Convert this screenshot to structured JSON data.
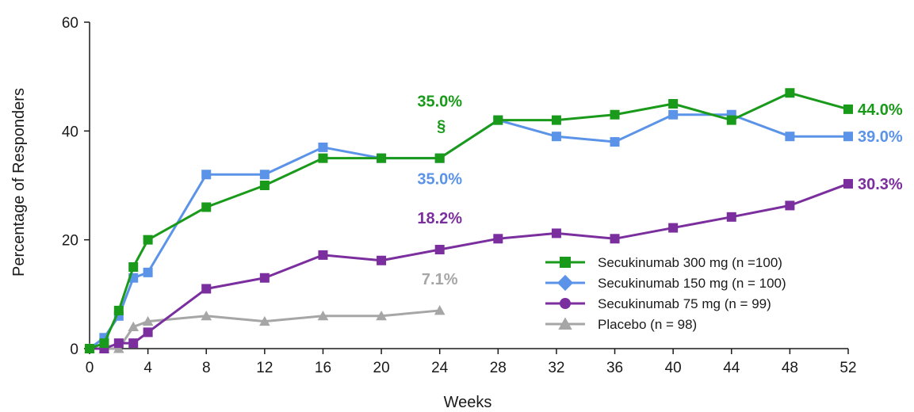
{
  "chart_data": {
    "type": "line",
    "xlabel": "Weeks",
    "ylabel": "Percentage of Responders",
    "xlim": [
      0,
      52
    ],
    "ylim": [
      0,
      60
    ],
    "xticks": [
      0,
      4,
      8,
      12,
      16,
      20,
      24,
      28,
      32,
      36,
      40,
      44,
      48,
      52
    ],
    "yticks": [
      0,
      20,
      40,
      60
    ],
    "grid": false,
    "legend_position": "bottom-right",
    "series": [
      {
        "name": "Secukinumab  300 mg (n =100)",
        "color": "#1a9a1a",
        "marker": "square",
        "points": [
          [
            0,
            0
          ],
          [
            1,
            1
          ],
          [
            2,
            7
          ],
          [
            3,
            15
          ],
          [
            4,
            20
          ],
          [
            8,
            26
          ],
          [
            12,
            30
          ],
          [
            16,
            35
          ],
          [
            20,
            35
          ],
          [
            24,
            35
          ],
          [
            28,
            42
          ],
          [
            32,
            42
          ],
          [
            36,
            43
          ],
          [
            40,
            45
          ],
          [
            44,
            42
          ],
          [
            48,
            47
          ],
          [
            52,
            44
          ]
        ]
      },
      {
        "name": "Secukinumab  150 mg (n = 100)",
        "color": "#5b93e8",
        "marker": "diamond",
        "points": [
          [
            0,
            0
          ],
          [
            1,
            2
          ],
          [
            2,
            6
          ],
          [
            3,
            13
          ],
          [
            4,
            14
          ],
          [
            8,
            32
          ],
          [
            12,
            32
          ],
          [
            16,
            37
          ],
          [
            20,
            35
          ],
          [
            24,
            35
          ],
          [
            28,
            42
          ],
          [
            32,
            39
          ],
          [
            36,
            38
          ],
          [
            40,
            43
          ],
          [
            44,
            43
          ],
          [
            48,
            39
          ],
          [
            52,
            39
          ]
        ]
      },
      {
        "name": "Secukinumab  75 mg (n = 99)",
        "color": "#7b2f9e",
        "marker": "circle",
        "points": [
          [
            0,
            0
          ],
          [
            1,
            0
          ],
          [
            2,
            1
          ],
          [
            3,
            1
          ],
          [
            4,
            3
          ],
          [
            8,
            11
          ],
          [
            12,
            13
          ],
          [
            16,
            17.2
          ],
          [
            20,
            16.2
          ],
          [
            24,
            18.2
          ],
          [
            28,
            20.2
          ],
          [
            32,
            21.2
          ],
          [
            36,
            20.2
          ],
          [
            40,
            22.2
          ],
          [
            44,
            24.2
          ],
          [
            48,
            26.3
          ],
          [
            52,
            30.3
          ]
        ]
      },
      {
        "name": "Placebo (n = 98)",
        "color": "#a6a6a6",
        "marker": "triangle",
        "points": [
          [
            0,
            0
          ],
          [
            1,
            0
          ],
          [
            2,
            0
          ],
          [
            3,
            4
          ],
          [
            4,
            5
          ],
          [
            8,
            6
          ],
          [
            12,
            5
          ],
          [
            16,
            6
          ],
          [
            20,
            6
          ],
          [
            24,
            7
          ]
        ]
      }
    ],
    "annotations": [
      {
        "text": "35.0%",
        "color": "#1a9a1a",
        "x": 24,
        "y": 35,
        "placement": "above-high"
      },
      {
        "text": "§",
        "color": "#1a9a1a",
        "x": 24,
        "y": 35,
        "placement": "above-mid"
      },
      {
        "text": "35.0%",
        "color": "#5b93e8",
        "x": 24,
        "y": 35,
        "placement": "below"
      },
      {
        "text": "18.2%",
        "color": "#7b2f9e",
        "x": 24,
        "y": 18.2,
        "placement": "above"
      },
      {
        "text": "7.1%",
        "color": "#a6a6a6",
        "x": 24,
        "y": 7,
        "placement": "above"
      },
      {
        "text": "44.0%",
        "color": "#1a9a1a",
        "x": 52,
        "y": 44,
        "placement": "right"
      },
      {
        "text": "39.0%",
        "color": "#5b93e8",
        "x": 52,
        "y": 39,
        "placement": "right"
      },
      {
        "text": "30.3%",
        "color": "#7b2f9e",
        "x": 52,
        "y": 30.3,
        "placement": "right"
      }
    ]
  }
}
